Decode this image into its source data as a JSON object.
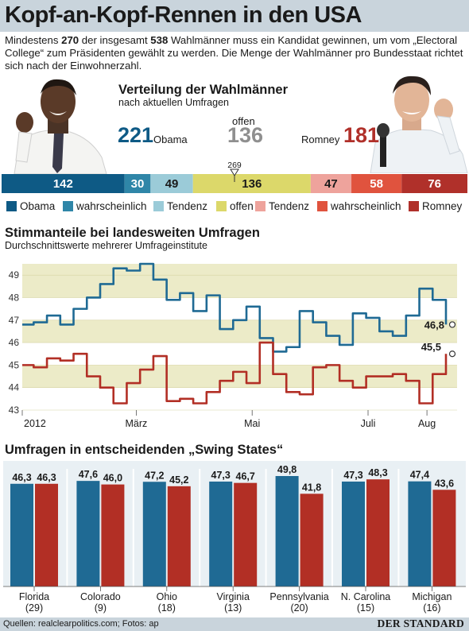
{
  "title": "Kopf-an-Kopf-Rennen in den USA",
  "intro": {
    "p1": "Mindestens ",
    "n1": "270",
    "p2": " der insgesamt ",
    "n2": "538",
    "p3": " Wahlmänner muss ein Kandidat gewinnen, um vom „Electoral College“ zum Präsidenten gewählt zu werden. Die Menge der Wahlmänner pro Bundesstaat richtet sich nach der Einwohnerzahl."
  },
  "electors": {
    "title": "Verteilung der Wahlmänner",
    "subtitle": "nach aktuellen Umfragen",
    "obama_total": "221",
    "obama_label": "Obama",
    "open_label": "offen",
    "open_total": "136",
    "romney_label": "Romney",
    "romney_total": "181",
    "threshold_label": "269",
    "threshold_value": 269,
    "total": 538,
    "segments": [
      {
        "label": "142",
        "value": 142,
        "color": "#0e5a85"
      },
      {
        "label": "30",
        "value": 30,
        "color": "#2f86a8"
      },
      {
        "label": "49",
        "value": 49,
        "color": "#9bcbd8"
      },
      {
        "label": "136",
        "value": 136,
        "color": "#dcd86a"
      },
      {
        "label": "47",
        "value": 47,
        "color": "#eea39c"
      },
      {
        "label": "58",
        "value": 58,
        "color": "#e0533e"
      },
      {
        "label": "76",
        "value": 76,
        "color": "#b0302a"
      }
    ],
    "legend": [
      {
        "label": "Obama",
        "color": "#0e5a85"
      },
      {
        "label": "wahrscheinlich",
        "color": "#2f86a8"
      },
      {
        "label": "Tendenz",
        "color": "#9bcbd8"
      },
      {
        "label": "offen",
        "color": "#dcd86a"
      },
      {
        "label": "Tendenz",
        "color": "#eea39c"
      },
      {
        "label": "wahrscheinlich",
        "color": "#e0533e"
      },
      {
        "label": "Romney",
        "color": "#b0302a"
      }
    ]
  },
  "colors": {
    "obama": "#1f6a94",
    "romney": "#b22f25",
    "band": "#ecebc8",
    "header": "#c9d4dc"
  },
  "national": {
    "title": "Stimmanteile bei landesweiten Umfragen",
    "subtitle": "Durchschnittswerte mehrerer Umfrageinstitute"
  },
  "swing": {
    "title": "Umfragen in entscheidenden „Swing States“"
  },
  "chart_data": [
    {
      "type": "line",
      "x": [
        "2012-01-01",
        "2012-01-07",
        "2012-01-14",
        "2012-01-21",
        "2012-01-28",
        "2012-02-04",
        "2012-02-11",
        "2012-02-18",
        "2012-02-25",
        "2012-03-03",
        "2012-03-10",
        "2012-03-17",
        "2012-03-24",
        "2012-03-31",
        "2012-04-07",
        "2012-04-14",
        "2012-04-21",
        "2012-04-28",
        "2012-05-05",
        "2012-05-12",
        "2012-05-19",
        "2012-05-26",
        "2012-06-02",
        "2012-06-09",
        "2012-06-16",
        "2012-06-23",
        "2012-06-30",
        "2012-07-07",
        "2012-07-14",
        "2012-07-21",
        "2012-07-28",
        "2012-08-04",
        "2012-08-11"
      ],
      "x_tick_labels": [
        "2012",
        "März",
        "Mai",
        "Juli",
        "Aug"
      ],
      "ylim": [
        43,
        49.5
      ],
      "y_ticks": [
        43,
        44,
        45,
        46,
        47,
        48,
        49
      ],
      "series": [
        {
          "name": "Obama",
          "values": [
            46.8,
            46.9,
            47.2,
            46.8,
            47.5,
            48.0,
            48.6,
            49.3,
            49.2,
            49.5,
            48.8,
            47.9,
            48.2,
            47.4,
            48.1,
            46.6,
            47.0,
            47.6,
            46.2,
            45.6,
            45.8,
            47.4,
            46.9,
            46.3,
            45.9,
            47.3,
            47.1,
            46.5,
            46.3,
            47.2,
            48.4,
            47.9,
            46.8
          ]
        },
        {
          "name": "Romney",
          "values": [
            45.0,
            44.9,
            45.3,
            45.2,
            45.5,
            44.5,
            44.0,
            43.3,
            44.2,
            44.8,
            45.4,
            43.4,
            43.5,
            43.3,
            43.8,
            44.3,
            44.7,
            44.2,
            46.0,
            44.6,
            43.8,
            43.7,
            44.9,
            45.0,
            44.3,
            44.0,
            44.5,
            44.5,
            44.6,
            44.3,
            43.3,
            44.6,
            45.5
          ]
        }
      ],
      "end_labels": {
        "obama": "46,8",
        "romney": "45,5"
      },
      "grid": "alternating bands"
    },
    {
      "type": "bar",
      "categories": [
        "Florida",
        "Colorado",
        "Ohio",
        "Virginia",
        "Pennsylvania",
        "N. Carolina",
        "Michigan"
      ],
      "category_sublabels": [
        "(29)",
        "(9)",
        "(18)",
        "(13)",
        "(20)",
        "(15)",
        "(16)"
      ],
      "ylim": [
        0,
        49.8
      ],
      "series": [
        {
          "name": "Obama",
          "values": [
            46.3,
            47.6,
            47.2,
            47.3,
            49.8,
            47.3,
            47.4
          ],
          "labels": [
            "46,3",
            "47,6",
            "47,2",
            "47,3",
            "49,8",
            "47,3",
            "47,4"
          ]
        },
        {
          "name": "Romney",
          "values": [
            46.3,
            46.0,
            45.2,
            46.7,
            41.8,
            48.3,
            43.6
          ],
          "labels": [
            "46,3",
            "46,0",
            "45,2",
            "46,7",
            "41,8",
            "48,3",
            "43,6"
          ]
        }
      ]
    }
  ],
  "footer": {
    "source": "Quellen: realclearpolitics.com; Fotos: ap",
    "logo": "DER STANDARD"
  }
}
